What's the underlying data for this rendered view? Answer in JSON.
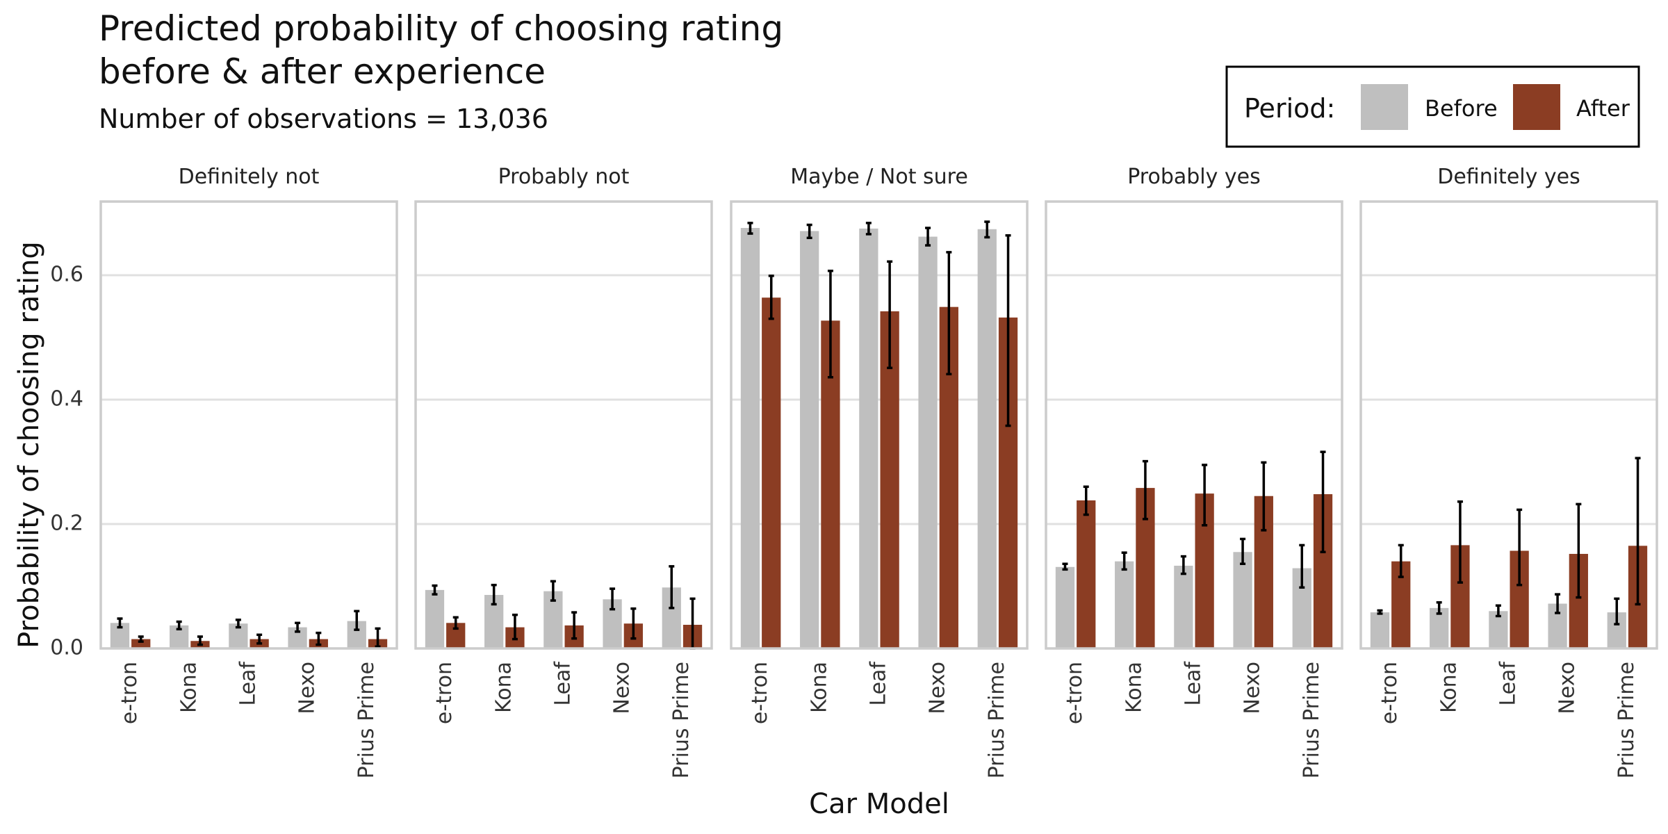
{
  "colors": {
    "before": "#bfbfbf",
    "after": "#8b3d23",
    "error_bar": "#000000",
    "grid": "#e0e0e0",
    "panel_border": "#cccccc"
  },
  "chart_data": {
    "type": "bar",
    "title_lines": [
      "Predicted probability of choosing rating",
      "before & after experience"
    ],
    "subtitle": "Number of observations = 13,036",
    "xlabel": "Car Model",
    "ylabel": "Probability of choosing rating",
    "ylim": [
      0,
      0.72
    ],
    "y_ticks": [
      "0.0",
      "0.2",
      "0.4",
      "0.6"
    ],
    "y_tick_values": [
      0,
      0.2,
      0.4,
      0.6
    ],
    "grid": true,
    "legend": {
      "title": "Period:",
      "placement": "top-right",
      "labels": [
        "Before",
        "After"
      ]
    },
    "categories": [
      "e-tron",
      "Kona",
      "Leaf",
      "Nexo",
      "Prius Prime"
    ],
    "panels": [
      {
        "facet": "Definitely not",
        "series": [
          {
            "name": "Before",
            "values": [
              0.041,
              0.037,
              0.04,
              0.034,
              0.044
            ],
            "lower": [
              0.034,
              0.031,
              0.034,
              0.027,
              0.03
            ],
            "upper": [
              0.048,
              0.043,
              0.046,
              0.041,
              0.06
            ]
          },
          {
            "name": "After",
            "values": [
              0.015,
              0.012,
              0.015,
              0.015,
              0.015
            ],
            "lower": [
              0.011,
              0.006,
              0.008,
              0.006,
              0.003
            ],
            "upper": [
              0.019,
              0.019,
              0.022,
              0.025,
              0.032
            ]
          }
        ]
      },
      {
        "facet": "Probably not",
        "series": [
          {
            "name": "Before",
            "values": [
              0.094,
              0.086,
              0.092,
              0.079,
              0.098
            ],
            "lower": [
              0.087,
              0.071,
              0.077,
              0.063,
              0.065
            ],
            "upper": [
              0.101,
              0.102,
              0.108,
              0.096,
              0.132
            ]
          },
          {
            "name": "After",
            "values": [
              0.041,
              0.034,
              0.037,
              0.04,
              0.038
            ],
            "lower": [
              0.032,
              0.015,
              0.016,
              0.016,
              0.0
            ],
            "upper": [
              0.05,
              0.054,
              0.058,
              0.064,
              0.08
            ]
          }
        ]
      },
      {
        "facet": "Maybe / Not sure",
        "series": [
          {
            "name": "Before",
            "values": [
              0.676,
              0.671,
              0.675,
              0.662,
              0.674
            ],
            "lower": [
              0.667,
              0.66,
              0.666,
              0.648,
              0.661
            ],
            "upper": [
              0.684,
              0.681,
              0.684,
              0.676,
              0.686
            ]
          },
          {
            "name": "After",
            "values": [
              0.564,
              0.527,
              0.542,
              0.549,
              0.532
            ],
            "lower": [
              0.53,
              0.436,
              0.451,
              0.441,
              0.358
            ],
            "upper": [
              0.599,
              0.607,
              0.622,
              0.637,
              0.664
            ]
          }
        ]
      },
      {
        "facet": "Probably yes",
        "series": [
          {
            "name": "Before",
            "values": [
              0.131,
              0.14,
              0.133,
              0.155,
              0.129
            ],
            "lower": [
              0.127,
              0.127,
              0.12,
              0.136,
              0.098
            ],
            "upper": [
              0.136,
              0.154,
              0.148,
              0.176,
              0.166
            ]
          },
          {
            "name": "After",
            "values": [
              0.238,
              0.258,
              0.249,
              0.245,
              0.248
            ],
            "lower": [
              0.215,
              0.208,
              0.198,
              0.19,
              0.155
            ],
            "upper": [
              0.26,
              0.301,
              0.295,
              0.299,
              0.316
            ]
          }
        ]
      },
      {
        "facet": "Definitely yes",
        "series": [
          {
            "name": "Before",
            "values": [
              0.058,
              0.065,
              0.06,
              0.072,
              0.058
            ],
            "lower": [
              0.056,
              0.056,
              0.052,
              0.057,
              0.039
            ],
            "upper": [
              0.061,
              0.074,
              0.069,
              0.087,
              0.08
            ]
          },
          {
            "name": "After",
            "values": [
              0.14,
              0.166,
              0.157,
              0.152,
              0.165
            ],
            "lower": [
              0.115,
              0.106,
              0.102,
              0.082,
              0.071
            ],
            "upper": [
              0.166,
              0.236,
              0.223,
              0.232,
              0.306
            ]
          }
        ]
      }
    ]
  }
}
